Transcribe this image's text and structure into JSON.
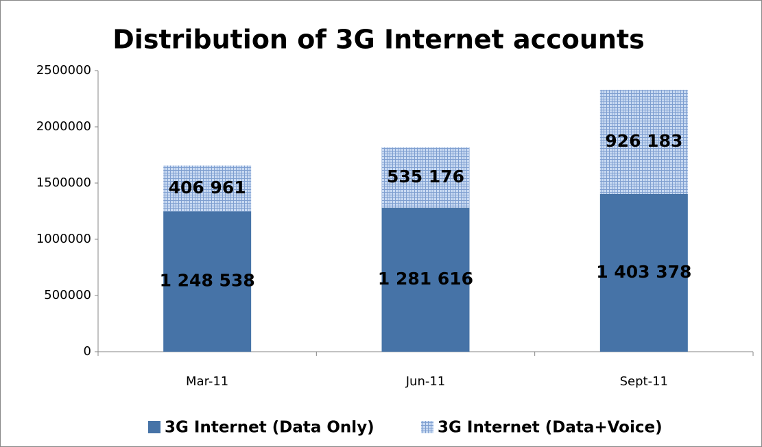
{
  "chart_data": {
    "type": "stacked_bar",
    "title": "Distribution of 3G Internet accounts",
    "categories": [
      "Mar-11",
      "Jun-11",
      "Sept-11"
    ],
    "series": [
      {
        "name": "3G Internet (Data Only)",
        "color": "#4673a7",
        "values": [
          1248538,
          1281616,
          1403378
        ],
        "value_labels": [
          "1 248 538",
          "1 281 616",
          "1 403 378"
        ]
      },
      {
        "name": "3G Internet (Data+Voice)",
        "color": "#a9c3e8",
        "values": [
          406961,
          535176,
          926183
        ],
        "value_labels": [
          "406 961",
          "535 176",
          "926 183"
        ]
      }
    ],
    "ylim": [
      0,
      2500000
    ],
    "yticks": [
      0,
      500000,
      1000000,
      1500000,
      2000000,
      2500000
    ],
    "grid": false,
    "legend": "bottom"
  }
}
